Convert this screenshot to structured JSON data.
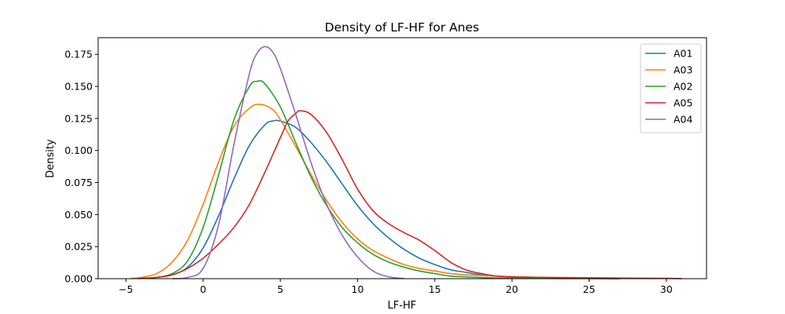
{
  "chart_data": {
    "type": "line",
    "title": "Density of LF-HF for Anes",
    "xlabel": "LF-HF",
    "ylabel": "Density",
    "xlim": [
      -6.8,
      32.6
    ],
    "ylim": [
      0,
      0.188
    ],
    "xticks": [
      -5,
      0,
      5,
      10,
      15,
      20,
      25,
      30
    ],
    "xtick_labels": [
      "−5",
      "0",
      "5",
      "10",
      "15",
      "20",
      "25",
      "30"
    ],
    "yticks": [
      0,
      0.025,
      0.05,
      0.075,
      0.1,
      0.125,
      0.15,
      0.175
    ],
    "ytick_labels": [
      "0.000",
      "0.025",
      "0.050",
      "0.075",
      "0.100",
      "0.125",
      "0.150",
      "0.175"
    ],
    "grid": false,
    "legend_position": "top-right",
    "series": [
      {
        "name": "A01",
        "color": "#1f77b4",
        "x": [
          -4,
          -3,
          -2,
          -1,
          0,
          1,
          2,
          3,
          4,
          4.5,
          5,
          6,
          7,
          8,
          9,
          10,
          11,
          12,
          13,
          14,
          15,
          16,
          17,
          18,
          19,
          20,
          21,
          22,
          23,
          24,
          25,
          26,
          27
        ],
        "y": [
          0.0002,
          0.001,
          0.003,
          0.009,
          0.024,
          0.049,
          0.078,
          0.104,
          0.12,
          0.123,
          0.123,
          0.118,
          0.106,
          0.091,
          0.074,
          0.057,
          0.043,
          0.032,
          0.023,
          0.016,
          0.011,
          0.007,
          0.005,
          0.003,
          0.002,
          0.0015,
          0.001,
          0.0007,
          0.0005,
          0.0003,
          0.0002,
          0.0001,
          0.0
        ]
      },
      {
        "name": "A03",
        "color": "#ff7f0e",
        "x": [
          -4.7,
          -4,
          -3,
          -2,
          -1,
          0,
          1,
          2,
          3,
          3.7,
          4.5,
          5,
          6,
          7,
          8,
          9,
          10,
          11,
          12,
          13,
          14,
          15,
          16,
          17,
          18,
          19,
          20,
          22,
          24,
          26,
          28,
          30,
          31
        ],
        "y": [
          0.0002,
          0.001,
          0.004,
          0.013,
          0.03,
          0.058,
          0.091,
          0.119,
          0.133,
          0.136,
          0.132,
          0.124,
          0.103,
          0.081,
          0.061,
          0.044,
          0.031,
          0.022,
          0.016,
          0.011,
          0.008,
          0.006,
          0.004,
          0.003,
          0.0025,
          0.002,
          0.0015,
          0.001,
          0.0008,
          0.0006,
          0.0004,
          0.0002,
          0.0001
        ]
      },
      {
        "name": "A02",
        "color": "#2ca02c",
        "x": [
          -4,
          -3,
          -2,
          -1,
          0,
          1,
          2,
          3,
          3.5,
          4,
          5,
          6,
          7,
          8,
          9,
          10,
          11,
          12,
          13,
          14,
          15,
          16,
          17,
          18,
          19,
          20,
          21,
          22,
          23,
          25,
          27
        ],
        "y": [
          0.0002,
          0.001,
          0.004,
          0.014,
          0.04,
          0.081,
          0.124,
          0.15,
          0.154,
          0.152,
          0.134,
          0.106,
          0.079,
          0.057,
          0.04,
          0.028,
          0.019,
          0.013,
          0.009,
          0.006,
          0.004,
          0.002,
          0.0014,
          0.0009,
          0.0006,
          0.0004,
          0.0003,
          0.0002,
          0.0001,
          0.0001,
          0.0
        ]
      },
      {
        "name": "A05",
        "color": "#d62728",
        "x": [
          -4.2,
          -3,
          -2,
          -1,
          0,
          1,
          2,
          3,
          4,
          5,
          5.5,
          6,
          6.3,
          7,
          8,
          9,
          10,
          11,
          12,
          13,
          14,
          15,
          16,
          17,
          18,
          19,
          20,
          22,
          24,
          26,
          28,
          30,
          31
        ],
        "y": [
          0.0001,
          0.001,
          0.003,
          0.008,
          0.016,
          0.027,
          0.04,
          0.058,
          0.083,
          0.11,
          0.123,
          0.129,
          0.131,
          0.128,
          0.114,
          0.093,
          0.07,
          0.053,
          0.043,
          0.036,
          0.03,
          0.022,
          0.013,
          0.007,
          0.004,
          0.002,
          0.0015,
          0.001,
          0.0007,
          0.0005,
          0.0003,
          0.0002,
          0.0001
        ]
      },
      {
        "name": "A04",
        "color": "#9467bd",
        "x": [
          -2,
          -1,
          0,
          1,
          2,
          3,
          3.5,
          4,
          4.5,
          5,
          6,
          7,
          8,
          9,
          10,
          11,
          12,
          13
        ],
        "y": [
          0.0,
          0.001,
          0.008,
          0.042,
          0.105,
          0.16,
          0.176,
          0.181,
          0.177,
          0.164,
          0.128,
          0.09,
          0.058,
          0.034,
          0.017,
          0.006,
          0.0015,
          0.0001
        ]
      }
    ]
  }
}
